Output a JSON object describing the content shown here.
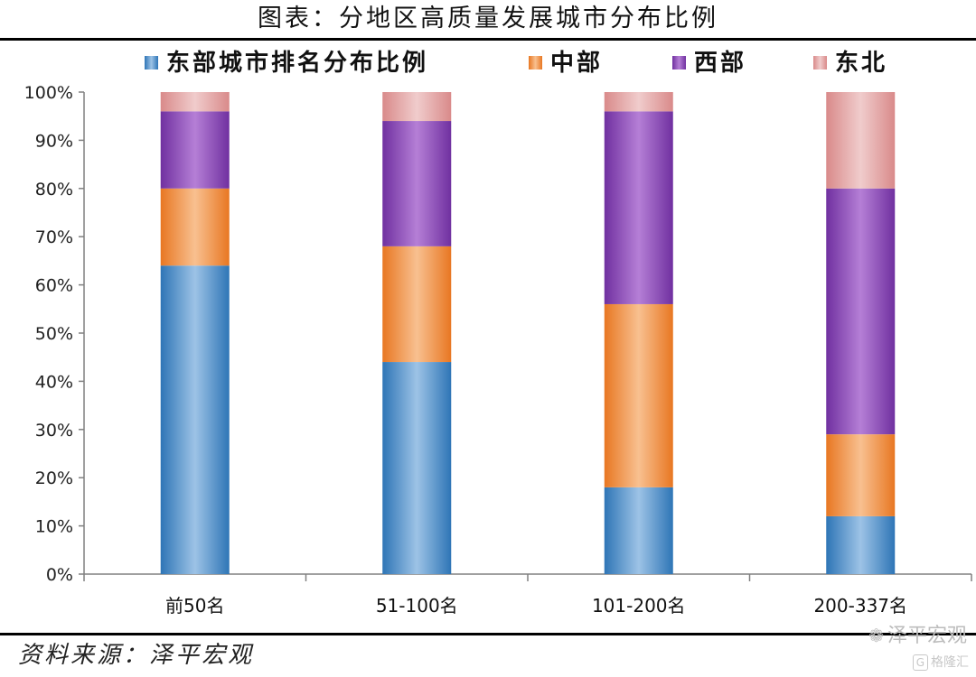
{
  "title": "图表：分地区高质量发展城市分布比例",
  "source": "资料来源：泽平宏观",
  "watermark": {
    "name": "泽平宏观",
    "icon": "wechat-icon"
  },
  "logo": {
    "mark": "G",
    "text": "格隆汇"
  },
  "chart_data": {
    "type": "bar",
    "stacked": true,
    "categories": [
      "前50名",
      "51-100名",
      "101-200名",
      "200-337名"
    ],
    "series": [
      {
        "name": "东部城市排名分布比例",
        "values": [
          64,
          44,
          18,
          12
        ],
        "color": "#2E75B6",
        "light": "#9DC3E6"
      },
      {
        "name": "中部",
        "values": [
          16,
          24,
          38,
          17
        ],
        "color": "#E87722",
        "light": "#F8C090"
      },
      {
        "name": "西部",
        "values": [
          16,
          26,
          40,
          51
        ],
        "color": "#7030A0",
        "light": "#B57FD6"
      },
      {
        "name": "东北",
        "values": [
          4,
          6,
          4,
          20
        ],
        "color": "#D98A8A",
        "light": "#F0CCCC"
      }
    ],
    "ylim": [
      0,
      100
    ],
    "yticks": [
      "0%",
      "10%",
      "20%",
      "30%",
      "40%",
      "50%",
      "60%",
      "70%",
      "80%",
      "90%",
      "100%"
    ],
    "legend_position": "top",
    "grid": false
  }
}
